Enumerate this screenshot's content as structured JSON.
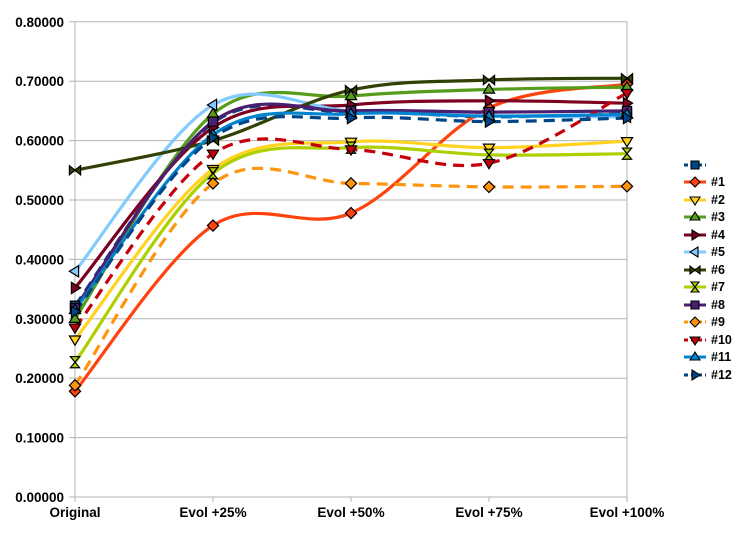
{
  "chart_data": {
    "type": "line",
    "title": "",
    "xlabel": "",
    "ylabel": "",
    "categories": [
      "Original",
      "Evol +25%",
      "Evol +50%",
      "Evol +75%",
      "Evol +100%"
    ],
    "ylim": [
      0.0,
      0.8
    ],
    "y_tick_step": 0.1,
    "y_tick_labels": [
      "0.00000",
      "0.10000",
      "0.20000",
      "0.30000",
      "0.40000",
      "0.50000",
      "0.60000",
      "0.70000",
      "0.80000"
    ],
    "grid": true,
    "grid_color": "#b3b3b3",
    "background_color": "#ffffff",
    "text_color": "#000000",
    "legend_position": "right",
    "line_smoothing": true,
    "series": [
      {
        "label": "",
        "color": "#004586",
        "marker": "square",
        "line_style": "dashed",
        "values": [
          0.322,
          0.63,
          0.648,
          0.64,
          0.645
        ]
      },
      {
        "label": "#1",
        "color": "#FF420E",
        "marker": "diamond",
        "line_style": "solid",
        "values": [
          0.178,
          0.457,
          0.478,
          0.655,
          0.695
        ]
      },
      {
        "label": "#2",
        "color": "#FFD320",
        "marker": "triangle-down",
        "line_style": "solid",
        "values": [
          0.265,
          0.552,
          0.598,
          0.588,
          0.599
        ]
      },
      {
        "label": "#3",
        "color": "#579D1C",
        "marker": "triangle-up",
        "line_style": "solid",
        "values": [
          0.3,
          0.645,
          0.675,
          0.686,
          0.69
        ]
      },
      {
        "label": "#4",
        "color": "#7E0021",
        "marker": "triangle-right",
        "line_style": "solid",
        "values": [
          0.352,
          0.622,
          0.66,
          0.667,
          0.663
        ]
      },
      {
        "label": "#5",
        "color": "#83CAFF",
        "marker": "triangle-left",
        "line_style": "solid",
        "values": [
          0.38,
          0.66,
          0.65,
          0.642,
          0.64
        ]
      },
      {
        "label": "#6",
        "color": "#314004",
        "marker": "bowtie",
        "line_style": "solid",
        "values": [
          0.55,
          0.6,
          0.685,
          0.702,
          0.705
        ]
      },
      {
        "label": "#7",
        "color": "#AECF00",
        "marker": "hourglass",
        "line_style": "solid",
        "values": [
          0.227,
          0.545,
          0.588,
          0.576,
          0.578
        ]
      },
      {
        "label": "#8",
        "color": "#4B1F6F",
        "marker": "square",
        "line_style": "solid",
        "values": [
          0.318,
          0.632,
          0.65,
          0.648,
          0.65
        ]
      },
      {
        "label": "#9",
        "color": "#FF950E",
        "marker": "diamond",
        "line_style": "dashed",
        "values": [
          0.188,
          0.528,
          0.528,
          0.522,
          0.523
        ]
      },
      {
        "label": "#10",
        "color": "#C5000B",
        "marker": "triangle-down",
        "line_style": "dashed",
        "values": [
          0.285,
          0.578,
          0.585,
          0.562,
          0.68
        ]
      },
      {
        "label": "#11",
        "color": "#0084D1",
        "marker": "triangle-up",
        "line_style": "solid",
        "values": [
          0.315,
          0.61,
          0.645,
          0.641,
          0.644
        ]
      },
      {
        "label": "#12",
        "color": "#004586",
        "marker": "triangle-right",
        "line_style": "dashed",
        "values": [
          0.312,
          0.605,
          0.638,
          0.632,
          0.638
        ]
      }
    ]
  }
}
